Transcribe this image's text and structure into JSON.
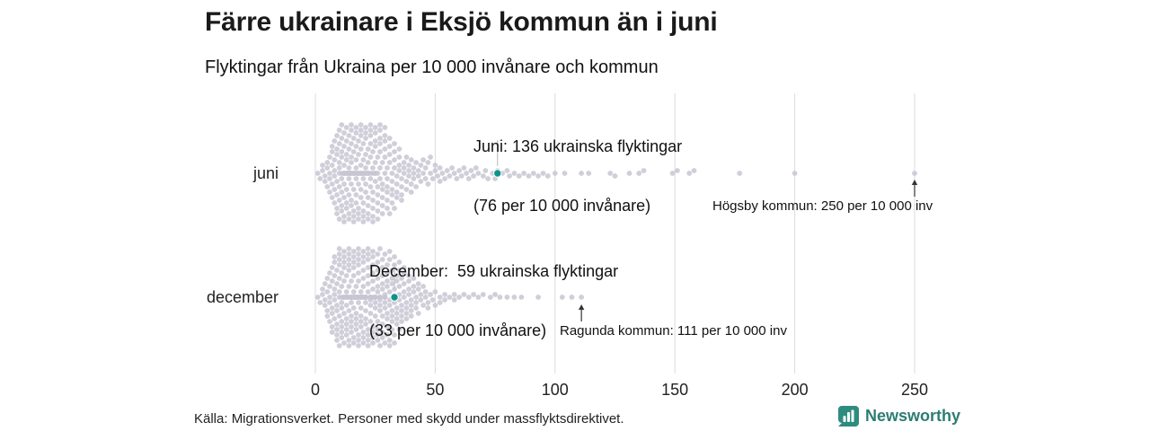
{
  "title": "Färre ukrainare i Eksjö kommun än i juni",
  "subtitle": "Flyktingar från Ukraina per 10 000 invånare och kommun",
  "footer": {
    "source": "Källa: Migrationsverket. Personer med skydd under massflyktsdirektivet."
  },
  "logo": {
    "label": "Newsworthy",
    "icon": "bar-chart-speech-bubble",
    "color": "#2d7d74",
    "icon_bg": "#2e8c7f"
  },
  "colors": {
    "dot": "#c8c5d2",
    "highlight": "#0d9488",
    "grid": "#dbdbdb",
    "arrow": "#333333",
    "connector": "#b5b5b5",
    "text": "#1a1a1a"
  },
  "chart_data": {
    "type": "scatter",
    "subtype": "beeswarm",
    "title": "Färre ukrainare i Eksjö kommun än i juni",
    "subtitle": "Flyktingar från Ukraina per 10 000 invånare och kommun",
    "xlabel": "",
    "ylabel": "",
    "xlim": [
      0,
      250
    ],
    "x_ticks": [
      0,
      50,
      100,
      150,
      200,
      250
    ],
    "unit": "flyktingar per 10 000 invånare",
    "grid": "vertical-only",
    "rows": [
      {
        "label": "juni",
        "highlight": {
          "municipality": "Eksjö",
          "value": 76,
          "refugees": 136,
          "line1": "Juni: 136 ukrainska flyktingar",
          "line2": "(76 per 10 000 invånare)"
        },
        "outlier": {
          "municipality": "Högsby",
          "value": 250,
          "label": "Högsby kommun: 250 per 10 000 inv"
        },
        "value_counts": [
          [
            1,
            1
          ],
          [
            2,
            1
          ],
          [
            3,
            2
          ],
          [
            4,
            2
          ],
          [
            5,
            3
          ],
          [
            6,
            4
          ],
          [
            7,
            5
          ],
          [
            8,
            6
          ],
          [
            9,
            7
          ],
          [
            10,
            8
          ],
          [
            11,
            9
          ],
          [
            12,
            10
          ],
          [
            13,
            10
          ],
          [
            14,
            11
          ],
          [
            15,
            11
          ],
          [
            16,
            11
          ],
          [
            17,
            10
          ],
          [
            18,
            10
          ],
          [
            19,
            10
          ],
          [
            20,
            10
          ],
          [
            21,
            9
          ],
          [
            22,
            9
          ],
          [
            23,
            8
          ],
          [
            24,
            8
          ],
          [
            25,
            8
          ],
          [
            26,
            7
          ],
          [
            27,
            7
          ],
          [
            28,
            6
          ],
          [
            29,
            6
          ],
          [
            30,
            6
          ],
          [
            31,
            5
          ],
          [
            32,
            5
          ],
          [
            33,
            5
          ],
          [
            34,
            4
          ],
          [
            35,
            4
          ],
          [
            36,
            4
          ],
          [
            37,
            3
          ],
          [
            38,
            3
          ],
          [
            39,
            3
          ],
          [
            40,
            3
          ],
          [
            41,
            3
          ],
          [
            42,
            2
          ],
          [
            43,
            2
          ],
          [
            44,
            2
          ],
          [
            45,
            2
          ],
          [
            46,
            2
          ],
          [
            47,
            2
          ],
          [
            48,
            2
          ],
          [
            49,
            1
          ],
          [
            50,
            2
          ],
          [
            51,
            1
          ],
          [
            52,
            2
          ],
          [
            53,
            1
          ],
          [
            54,
            1
          ],
          [
            55,
            1
          ],
          [
            56,
            1
          ],
          [
            57,
            1
          ],
          [
            58,
            1
          ],
          [
            59,
            1
          ],
          [
            60,
            1
          ],
          [
            61,
            1
          ],
          [
            62,
            1
          ],
          [
            63,
            1
          ],
          [
            64,
            1
          ],
          [
            65,
            1
          ],
          [
            66,
            1
          ],
          [
            67,
            1
          ],
          [
            68,
            1
          ],
          [
            70,
            1
          ],
          [
            71,
            1
          ],
          [
            72,
            1
          ],
          [
            74,
            1
          ],
          [
            75,
            1
          ],
          [
            76,
            1
          ],
          [
            78,
            1
          ],
          [
            80,
            1
          ],
          [
            81,
            1
          ],
          [
            83,
            1
          ],
          [
            85,
            1
          ],
          [
            87,
            1
          ],
          [
            89,
            1
          ],
          [
            91,
            1
          ],
          [
            93,
            1
          ],
          [
            95,
            1
          ],
          [
            97,
            1
          ],
          [
            100,
            1
          ],
          [
            104,
            1
          ],
          [
            111,
            1
          ],
          [
            114,
            1
          ],
          [
            123,
            1
          ],
          [
            125,
            1
          ],
          [
            131,
            1
          ],
          [
            135,
            1
          ],
          [
            137,
            1
          ],
          [
            149,
            1
          ],
          [
            151,
            1
          ],
          [
            156,
            1
          ],
          [
            158,
            1
          ],
          [
            177,
            1
          ],
          [
            200,
            1
          ],
          [
            250,
            1
          ]
        ]
      },
      {
        "label": "december",
        "highlight": {
          "municipality": "Eksjö",
          "value": 33,
          "refugees": 59,
          "line1": "December:  59 ukrainska flyktingar",
          "line2": "(33 per 10 000 invånare)"
        },
        "outlier": {
          "municipality": "Ragunda",
          "value": 111,
          "label": "Ragunda kommun: 111 per 10 000 inv"
        },
        "value_counts": [
          [
            1,
            1
          ],
          [
            2,
            1
          ],
          [
            3,
            2
          ],
          [
            4,
            3
          ],
          [
            5,
            4
          ],
          [
            6,
            5
          ],
          [
            7,
            6
          ],
          [
            8,
            7
          ],
          [
            9,
            8
          ],
          [
            10,
            9
          ],
          [
            11,
            9
          ],
          [
            12,
            10
          ],
          [
            13,
            10
          ],
          [
            14,
            11
          ],
          [
            15,
            11
          ],
          [
            16,
            12
          ],
          [
            17,
            12
          ],
          [
            18,
            12
          ],
          [
            19,
            12
          ],
          [
            20,
            12
          ],
          [
            21,
            12
          ],
          [
            22,
            11
          ],
          [
            23,
            11
          ],
          [
            24,
            11
          ],
          [
            25,
            10
          ],
          [
            26,
            10
          ],
          [
            27,
            9
          ],
          [
            28,
            9
          ],
          [
            29,
            8
          ],
          [
            30,
            8
          ],
          [
            31,
            7
          ],
          [
            32,
            7
          ],
          [
            33,
            7
          ],
          [
            34,
            6
          ],
          [
            35,
            6
          ],
          [
            36,
            5
          ],
          [
            37,
            5
          ],
          [
            38,
            4
          ],
          [
            39,
            4
          ],
          [
            40,
            4
          ],
          [
            41,
            3
          ],
          [
            42,
            3
          ],
          [
            43,
            3
          ],
          [
            44,
            2
          ],
          [
            45,
            2
          ],
          [
            46,
            2
          ],
          [
            47,
            2
          ],
          [
            48,
            1
          ],
          [
            49,
            1
          ],
          [
            50,
            2
          ],
          [
            52,
            2
          ],
          [
            54,
            2
          ],
          [
            56,
            1
          ],
          [
            58,
            2
          ],
          [
            60,
            1
          ],
          [
            62,
            1
          ],
          [
            64,
            1
          ],
          [
            66,
            1
          ],
          [
            68,
            1
          ],
          [
            70,
            1
          ],
          [
            73,
            1
          ],
          [
            75,
            1
          ],
          [
            77,
            1
          ],
          [
            80,
            1
          ],
          [
            83,
            1
          ],
          [
            86,
            1
          ],
          [
            93,
            1
          ],
          [
            103,
            1
          ],
          [
            107,
            1
          ],
          [
            111,
            1
          ]
        ]
      }
    ]
  }
}
